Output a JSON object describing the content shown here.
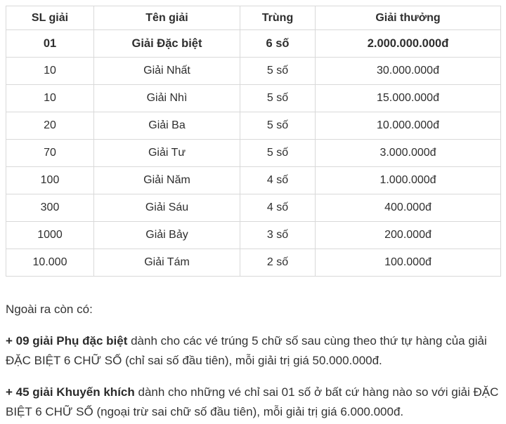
{
  "table": {
    "headers": [
      "SL giải",
      "Tên giải",
      "Trùng",
      "Giải thưởng"
    ],
    "rows": [
      {
        "qty": "01",
        "name": "Giải Đặc biệt",
        "match": "6 số",
        "prize": "2.000.000.000đ"
      },
      {
        "qty": "10",
        "name": "Giải Nhất",
        "match": "5 số",
        "prize": "30.000.000đ"
      },
      {
        "qty": "10",
        "name": "Giải Nhì",
        "match": "5 số",
        "prize": "15.000.000đ"
      },
      {
        "qty": "20",
        "name": "Giải Ba",
        "match": "5 số",
        "prize": "10.000.000đ"
      },
      {
        "qty": "70",
        "name": "Giải Tư",
        "match": "5 số",
        "prize": "3.000.000đ"
      },
      {
        "qty": "100",
        "name": "Giải Năm",
        "match": "4 số",
        "prize": "1.000.000đ"
      },
      {
        "qty": "300",
        "name": "Giải Sáu",
        "match": "4 số",
        "prize": "400.000đ"
      },
      {
        "qty": "1000",
        "name": "Giải Bảy",
        "match": "3 số",
        "prize": "200.000đ"
      },
      {
        "qty": "10.000",
        "name": "Giải Tám",
        "match": "2 số",
        "prize": "100.000đ"
      }
    ]
  },
  "notes": {
    "intro": "Ngoài ra còn có:",
    "items": [
      {
        "bold": "+ 09 giải Phụ đặc biệt",
        "rest": " dành cho các vé trúng 5 chữ số sau cùng theo thứ tự hàng của giải ĐẶC BIỆT 6 CHỮ SỐ (chỉ sai số đầu tiên), mỗi giải trị giá 50.000.000đ."
      },
      {
        "bold": "+ 45 giải Khuyến khích",
        "rest": " dành cho những vé chỉ sai 01 số ở bất cứ hàng nào so với giải ĐẶC BIỆT 6 CHỮ SỐ (ngoại trừ sai chữ số đầu tiên), mỗi giải trị giá 6.000.000đ."
      }
    ]
  },
  "colors": {
    "border": "#d9d9d9",
    "text": "#2e2e2e",
    "background": "#ffffff"
  }
}
